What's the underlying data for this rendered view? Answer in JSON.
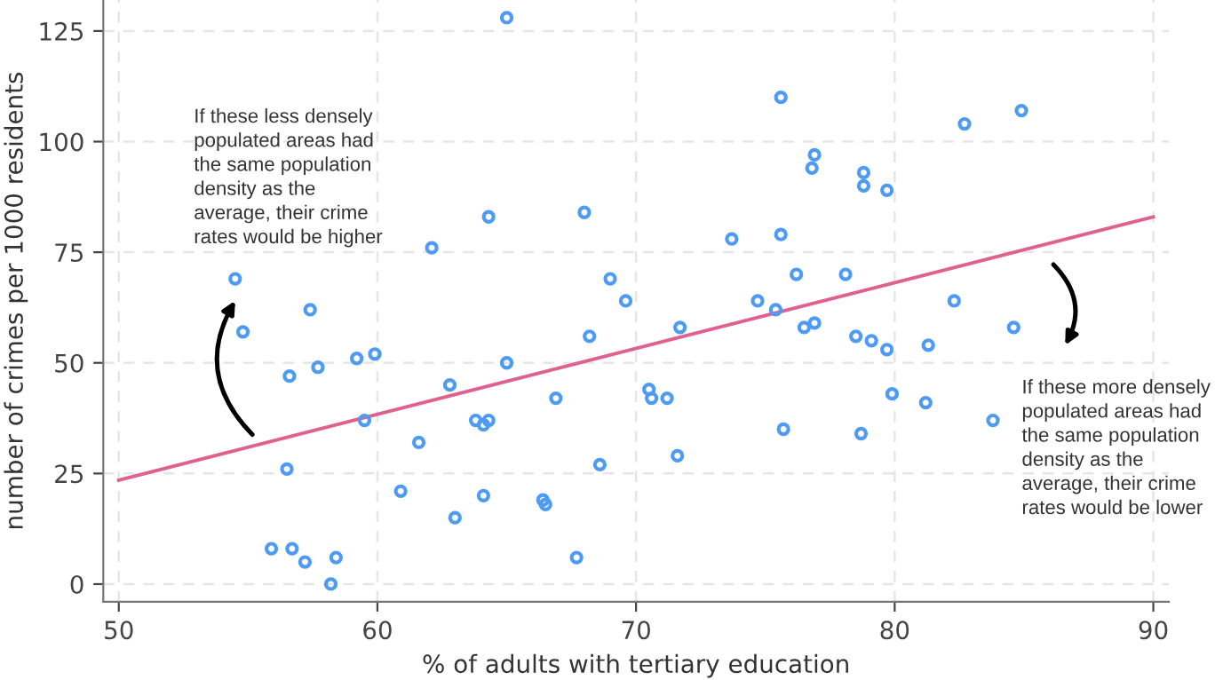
{
  "chart_data": {
    "type": "scatter",
    "xlabel": "% of adults with tertiary education",
    "ylabel": "number of crimes per 1000 residents",
    "xlim": [
      49.4,
      90.6
    ],
    "ylim": [
      -4,
      132
    ],
    "xticks": [
      50,
      60,
      70,
      80,
      90
    ],
    "yticks": [
      0,
      25,
      50,
      75,
      100,
      125
    ],
    "grid": true,
    "marker": "circle",
    "series": [
      {
        "color": "#4d9bf5",
        "x": [
          54.5,
          54.8,
          57.4,
          56.6,
          57.7,
          59.2,
          59.9,
          59.5,
          56.5,
          55.9,
          56.7,
          57.2,
          58.4,
          58.2,
          60.9,
          61.6,
          62.1,
          62.8,
          63.0,
          64.3,
          63.8,
          64.1,
          64.3,
          64.1,
          65.0,
          65.0,
          66.9,
          66.4,
          66.5,
          68.0,
          68.2,
          68.6,
          69.0,
          69.6,
          67.7,
          70.5,
          70.6,
          71.2,
          71.6,
          71.7,
          73.7,
          75.6,
          76.2,
          74.7,
          75.4,
          76.5,
          76.9,
          75.6,
          76.9,
          76.8,
          75.7,
          82.7,
          84.9,
          78.8,
          78.8,
          79.7,
          78.1,
          82.3,
          84.6,
          78.5,
          79.1,
          79.7,
          81.3,
          79.9,
          81.2,
          78.7,
          83.8
        ],
        "values": [
          69,
          57,
          62,
          47,
          49,
          51,
          52,
          37,
          26,
          8,
          8,
          5,
          6,
          0,
          21,
          32,
          76,
          45,
          15,
          83,
          37,
          36,
          37,
          20,
          128,
          50,
          42,
          19,
          18,
          84,
          56,
          27,
          69,
          64,
          6,
          44,
          42,
          42,
          29,
          58,
          78,
          79,
          70,
          64,
          62,
          58,
          59,
          110,
          97,
          94,
          35,
          104,
          107,
          93,
          90,
          89,
          70,
          64,
          58,
          56,
          55,
          53,
          54,
          43,
          41,
          34,
          37
        ]
      },
      {
        "type": "line",
        "color": "#e0608f",
        "x": [
          50,
          90
        ],
        "values": [
          23.5,
          83
        ],
        "marker": "none"
      }
    ],
    "annotations": [
      "If these less densely\npopulated areas had\nthe same population\ndensity as the\naverage, their crime\nrates would be higher",
      "If these more densely\npopulated areas had\nthe same population\ndensity as the\naverage, their crime\nrates would be lower"
    ]
  }
}
